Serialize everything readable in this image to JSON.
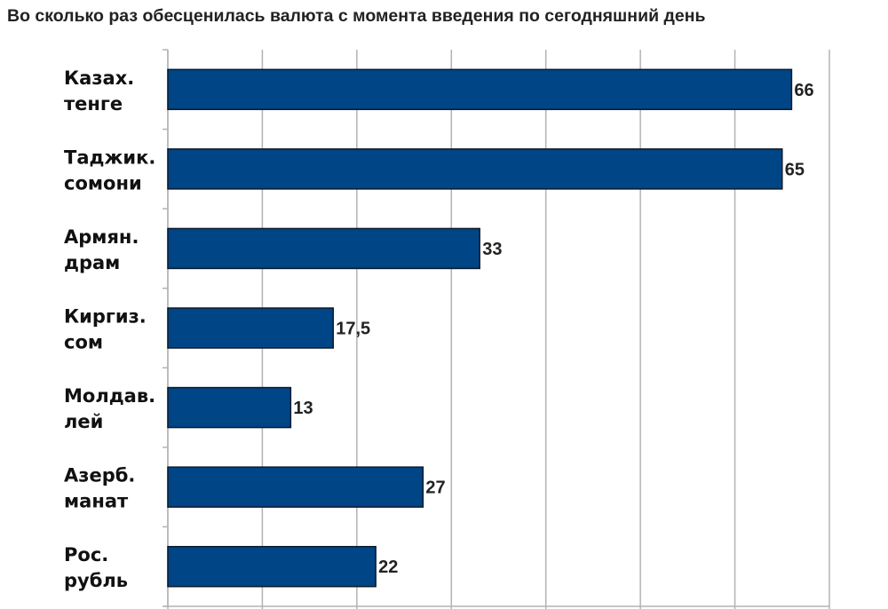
{
  "chart_data": {
    "type": "bar",
    "orientation": "horizontal",
    "title": "Во сколько раз обесценилась валюта с момента введения по сегодняшний день",
    "xlabel": "",
    "ylabel": "",
    "categories": [
      [
        "Казах.",
        "тенге"
      ],
      [
        "Таджик.",
        "сомони"
      ],
      [
        "Армян.",
        "драм"
      ],
      [
        "Киргиз.",
        "сом"
      ],
      [
        "Молдав.",
        "лей"
      ],
      [
        "Азерб.",
        "манат"
      ],
      [
        "Рос.",
        "рубль"
      ]
    ],
    "values": [
      66,
      65,
      33,
      17.5,
      13,
      27,
      22
    ],
    "value_labels": [
      "66",
      "65",
      "33",
      "17,5",
      "13",
      "27",
      "22"
    ],
    "xlim": [
      0,
      70
    ],
    "grid_step": 10,
    "grid": true,
    "legend": "none",
    "bar_color": "#004586"
  }
}
